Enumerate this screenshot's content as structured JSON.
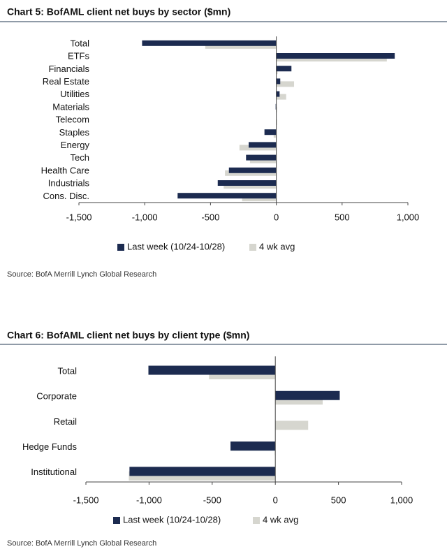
{
  "chart_data": [
    {
      "type": "bar",
      "orientation": "horizontal",
      "title": "Chart 5: BofAML client net buys by sector ($mn)",
      "categories": [
        "Total",
        "ETFs",
        "Financials",
        "Real Estate",
        "Utilities",
        "Materials",
        "Telecom",
        "Staples",
        "Energy",
        "Tech",
        "Health Care",
        "Industrials",
        "Cons. Disc."
      ],
      "series": [
        {
          "name": "Last week (10/24-10/28)",
          "color": "#1c2b50",
          "values": [
            -1020,
            900,
            115,
            30,
            25,
            -5,
            0,
            -90,
            -210,
            -230,
            -360,
            -445,
            -750
          ]
        },
        {
          "name": "4 wk avg",
          "color": "#d6d6cf",
          "values": [
            -540,
            840,
            10,
            135,
            75,
            5,
            5,
            -20,
            -280,
            -200,
            -390,
            -400,
            -260
          ]
        }
      ],
      "xlim": [
        -1500,
        1000
      ],
      "xticks": [
        {
          "value": -1500,
          "label": "-1,500"
        },
        {
          "value": -1000,
          "label": "-1,000"
        },
        -500,
        0,
        500,
        {
          "value": 1000,
          "label": "1,000"
        }
      ],
      "legend": "bottom",
      "source": "Source: BofA Merrill Lynch Global Research"
    },
    {
      "type": "bar",
      "orientation": "horizontal",
      "title": "Chart 6: BofAML client net buys by client type ($mn)",
      "categories": [
        "Total",
        "Corporate",
        "Retail",
        "Hedge Funds",
        "Institutional"
      ],
      "series": [
        {
          "name": "Last week (10/24-10/28)",
          "color": "#1c2b50",
          "values": [
            -1005,
            510,
            0,
            -355,
            -1155
          ]
        },
        {
          "name": "4 wk avg",
          "color": "#d6d6cf",
          "values": [
            -525,
            375,
            260,
            -5,
            -1160
          ]
        }
      ],
      "xlim": [
        -1500,
        1000
      ],
      "xticks": [
        {
          "value": -1500,
          "label": "-1,500"
        },
        {
          "value": -1000,
          "label": "-1,000"
        },
        -500,
        0,
        500,
        {
          "value": 1000,
          "label": "1,000"
        }
      ],
      "legend": "bottom",
      "source": "Source: BofA Merrill Lynch Global Research"
    }
  ]
}
